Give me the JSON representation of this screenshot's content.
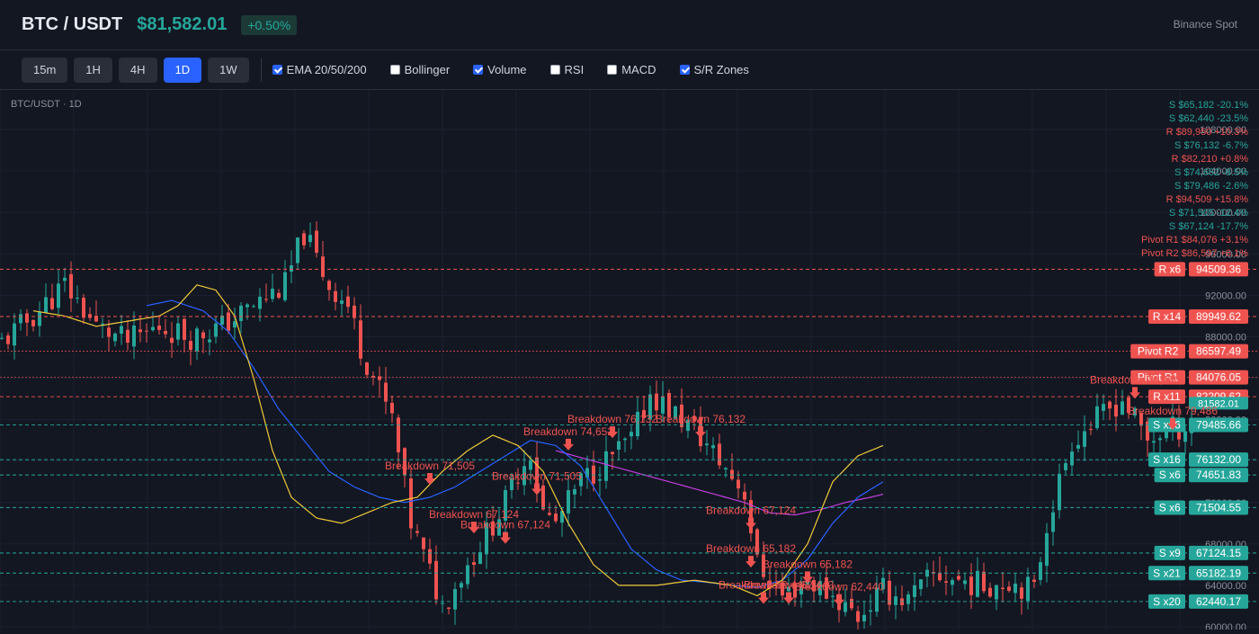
{
  "header": {
    "pair": "BTC / USDT",
    "price": "$81,582.01",
    "change": "+0.50%",
    "exchange": "Binance Spot"
  },
  "toolbar": {
    "timeframes": [
      {
        "label": "15m",
        "active": false
      },
      {
        "label": "1H",
        "active": false
      },
      {
        "label": "4H",
        "active": false
      },
      {
        "label": "1D",
        "active": true
      },
      {
        "label": "1W",
        "active": false
      }
    ],
    "indicators": [
      {
        "label": "EMA 20/50/200",
        "checked": true
      },
      {
        "label": "Bollinger",
        "checked": false
      },
      {
        "label": "Volume",
        "checked": true
      },
      {
        "label": "RSI",
        "checked": false
      },
      {
        "label": "MACD",
        "checked": false
      },
      {
        "label": "S/R Zones",
        "checked": true
      }
    ]
  },
  "chart_data": {
    "type": "candlestick",
    "title": "BTC/USDT · 1D",
    "y_axis": {
      "min": 60000,
      "max": 108000,
      "ticks": [
        108000,
        104000,
        100000,
        96000,
        92000,
        88000,
        84000,
        80000,
        76000,
        72000,
        68000,
        64000,
        60000
      ],
      "tick_labels": [
        "108000.00",
        "104000.00",
        "100000.00",
        "96000.00",
        "92000.00",
        "88000.00",
        "84000.00",
        "80000.00",
        "76000.00",
        "72000.00",
        "68000.00",
        "64000.00",
        "60000.00"
      ]
    },
    "colors": {
      "up": "#26a69a",
      "down": "#ef5350",
      "ema20": "#f0c93a",
      "ema50": "#2962ff",
      "ema200": "#c43ee0",
      "support": "#26a69a",
      "resistance": "#ef5350"
    },
    "close_path": [
      [
        0,
        87500
      ],
      [
        5,
        90000
      ],
      [
        10,
        93000
      ],
      [
        15,
        89000
      ],
      [
        20,
        87500
      ],
      [
        25,
        89000
      ],
      [
        30,
        88000
      ],
      [
        35,
        89000
      ],
      [
        40,
        91000
      ],
      [
        45,
        93000
      ],
      [
        48,
        98000
      ],
      [
        52,
        93000
      ],
      [
        55,
        91000
      ],
      [
        57,
        87000
      ],
      [
        62,
        80000
      ],
      [
        65,
        70000
      ],
      [
        70,
        62000
      ],
      [
        74,
        66000
      ],
      [
        78,
        70000
      ],
      [
        80,
        72000
      ],
      [
        82,
        75000
      ],
      [
        84,
        77000
      ],
      [
        86,
        71000
      ],
      [
        88,
        70000
      ],
      [
        92,
        74000
      ],
      [
        96,
        76000
      ],
      [
        100,
        78000
      ],
      [
        103,
        82500
      ],
      [
        106,
        81000
      ],
      [
        110,
        79000
      ],
      [
        114,
        76000
      ],
      [
        118,
        73000
      ],
      [
        120,
        66000
      ],
      [
        124,
        63000
      ],
      [
        128,
        64500
      ],
      [
        132,
        63000
      ],
      [
        136,
        61000
      ],
      [
        140,
        63500
      ],
      [
        144,
        62500
      ],
      [
        148,
        65000
      ],
      [
        152,
        64500
      ],
      [
        156,
        64000
      ],
      [
        160,
        64500
      ],
      [
        164,
        63500
      ],
      [
        166,
        70000
      ],
      [
        170,
        78000
      ],
      [
        174,
        80000
      ],
      [
        178,
        82000
      ],
      [
        182,
        78000
      ],
      [
        185,
        79000
      ],
      [
        189,
        79500
      ]
    ],
    "ema20_path": [
      [
        5,
        90500
      ],
      [
        10,
        90000
      ],
      [
        15,
        89000
      ],
      [
        20,
        89500
      ],
      [
        25,
        90000
      ],
      [
        28,
        91000
      ],
      [
        31,
        93000
      ],
      [
        34,
        92500
      ],
      [
        37,
        90000
      ],
      [
        40,
        84000
      ],
      [
        43,
        77000
      ],
      [
        46,
        72500
      ],
      [
        50,
        70500
      ],
      [
        54,
        70000
      ],
      [
        58,
        71000
      ],
      [
        62,
        72000
      ],
      [
        66,
        72500
      ],
      [
        70,
        75000
      ],
      [
        74,
        77000
      ],
      [
        78,
        78500
      ],
      [
        82,
        77500
      ],
      [
        86,
        75000
      ],
      [
        90,
        70000
      ],
      [
        94,
        66000
      ],
      [
        98,
        64000
      ],
      [
        104,
        64000
      ],
      [
        110,
        64500
      ],
      [
        116,
        64000
      ],
      [
        120,
        63000
      ],
      [
        124,
        64500
      ],
      [
        128,
        68000
      ],
      [
        132,
        74000
      ],
      [
        136,
        76500
      ],
      [
        140,
        77500
      ]
    ],
    "ema50_path": [
      [
        23,
        91000
      ],
      [
        27,
        91500
      ],
      [
        32,
        90500
      ],
      [
        36,
        88500
      ],
      [
        40,
        85000
      ],
      [
        44,
        81000
      ],
      [
        48,
        78000
      ],
      [
        52,
        75000
      ],
      [
        56,
        73500
      ],
      [
        60,
        72500
      ],
      [
        64,
        72000
      ],
      [
        68,
        72500
      ],
      [
        72,
        73500
      ],
      [
        76,
        75000
      ],
      [
        80,
        76500
      ],
      [
        84,
        78000
      ],
      [
        88,
        77500
      ],
      [
        92,
        75500
      ],
      [
        96,
        71500
      ],
      [
        100,
        67500
      ],
      [
        104,
        65500
      ],
      [
        108,
        64500
      ],
      [
        112,
        64300
      ],
      [
        116,
        64000
      ],
      [
        120,
        63800
      ],
      [
        124,
        64500
      ],
      [
        128,
        66500
      ],
      [
        132,
        70000
      ],
      [
        136,
        72500
      ],
      [
        140,
        74000
      ]
    ],
    "ema200_path": [
      [
        88,
        77000
      ],
      [
        94,
        76000
      ],
      [
        100,
        75000
      ],
      [
        106,
        74000
      ],
      [
        112,
        73000
      ],
      [
        118,
        72000
      ],
      [
        122,
        71000
      ],
      [
        126,
        70800
      ],
      [
        130,
        71300
      ],
      [
        134,
        72000
      ],
      [
        138,
        72500
      ],
      [
        140,
        72800
      ]
    ],
    "zones": [
      {
        "kind": "resistance",
        "price": 94509.36,
        "label": "R x6",
        "price_label": "94509.36"
      },
      {
        "kind": "resistance",
        "price": 89949.62,
        "label": "R x14",
        "price_label": "89949.62"
      },
      {
        "kind": "pivot",
        "price": 86597.49,
        "label": "Pivot R2",
        "price_label": "86597.49"
      },
      {
        "kind": "pivot",
        "price": 84076.05,
        "label": "Pivot R1",
        "price_label": "84076.05"
      },
      {
        "kind": "resistance",
        "price": 82209.62,
        "label": "R x11",
        "price_label": "82209.62"
      },
      {
        "kind": "support",
        "price": 79485.66,
        "label": "S x16",
        "price_label": "79485.66"
      },
      {
        "kind": "support",
        "price": 76132.0,
        "label": "S x16",
        "price_label": "76132.00"
      },
      {
        "kind": "support",
        "price": 74651.83,
        "label": "S x6",
        "price_label": "74651.83"
      },
      {
        "kind": "support",
        "price": 71504.55,
        "label": "S x6",
        "price_label": "71504.55"
      },
      {
        "kind": "support",
        "price": 67124.15,
        "label": "S x9",
        "price_label": "67124.15"
      },
      {
        "kind": "support",
        "price": 65182.19,
        "label": "S x21",
        "price_label": "65182.19"
      },
      {
        "kind": "support",
        "price": 62440.17,
        "label": "S x20",
        "price_label": "62440.17"
      }
    ],
    "last_price_label": "81582.01",
    "overlay_labels": [
      {
        "text": "S $65,182 -20.1%",
        "kind": "support"
      },
      {
        "text": "S $62,440 -23.5%",
        "kind": "support"
      },
      {
        "text": "R $89,950 +10.3%",
        "kind": "resistance"
      },
      {
        "text": "S $76,132 -6.7%",
        "kind": "support"
      },
      {
        "text": "R $82,210 +0.8%",
        "kind": "resistance"
      },
      {
        "text": "S $74,652 -8.5%",
        "kind": "support"
      },
      {
        "text": "S $79,486 -2.6%",
        "kind": "support"
      },
      {
        "text": "R $94,509 +15.8%",
        "kind": "resistance"
      },
      {
        "text": "S $71,505 -12.4%",
        "kind": "support"
      },
      {
        "text": "S $67,124 -17.7%",
        "kind": "support"
      },
      {
        "text": "Pivot R1 $84,076 +3.1%",
        "kind": "resistance"
      },
      {
        "text": "Pivot R2 $86,597 +6.1%",
        "kind": "resistance"
      }
    ],
    "markers": [
      {
        "text": "Breakdown 71,505",
        "i": 68,
        "price": 74500
      },
      {
        "text": "Breakdown 67,124",
        "i": 75,
        "price": 69800
      },
      {
        "text": "Breakdown 67,124",
        "i": 80,
        "price": 68800
      },
      {
        "text": "Breakdown 71,505",
        "i": 85,
        "price": 73500
      },
      {
        "text": "Breakdown 74,652",
        "i": 90,
        "price": 77800
      },
      {
        "text": "Breakdown 76,132",
        "i": 97,
        "price": 79000
      },
      {
        "text": "Breakdown 76,132",
        "i": 111,
        "price": 79000
      },
      {
        "text": "Breakdown 67,124",
        "i": 119,
        "price": 70200
      },
      {
        "text": "Breakdown 65,182",
        "i": 119,
        "price": 66500
      },
      {
        "text": "Breakdown 65,182",
        "i": 128,
        "price": 65000
      },
      {
        "text": "Breakdown 62,440",
        "i": 121,
        "price": 63000
      },
      {
        "text": "Breakdown 62,440",
        "i": 125,
        "price": 63000
      },
      {
        "text": "Breakdown 62,440",
        "i": 133,
        "price": 62800
      },
      {
        "text": "Breakdown 79,486",
        "i": 180,
        "price": 82800
      },
      {
        "text": "Breakdown 79,486",
        "i": 186,
        "price": 79800
      }
    ]
  }
}
